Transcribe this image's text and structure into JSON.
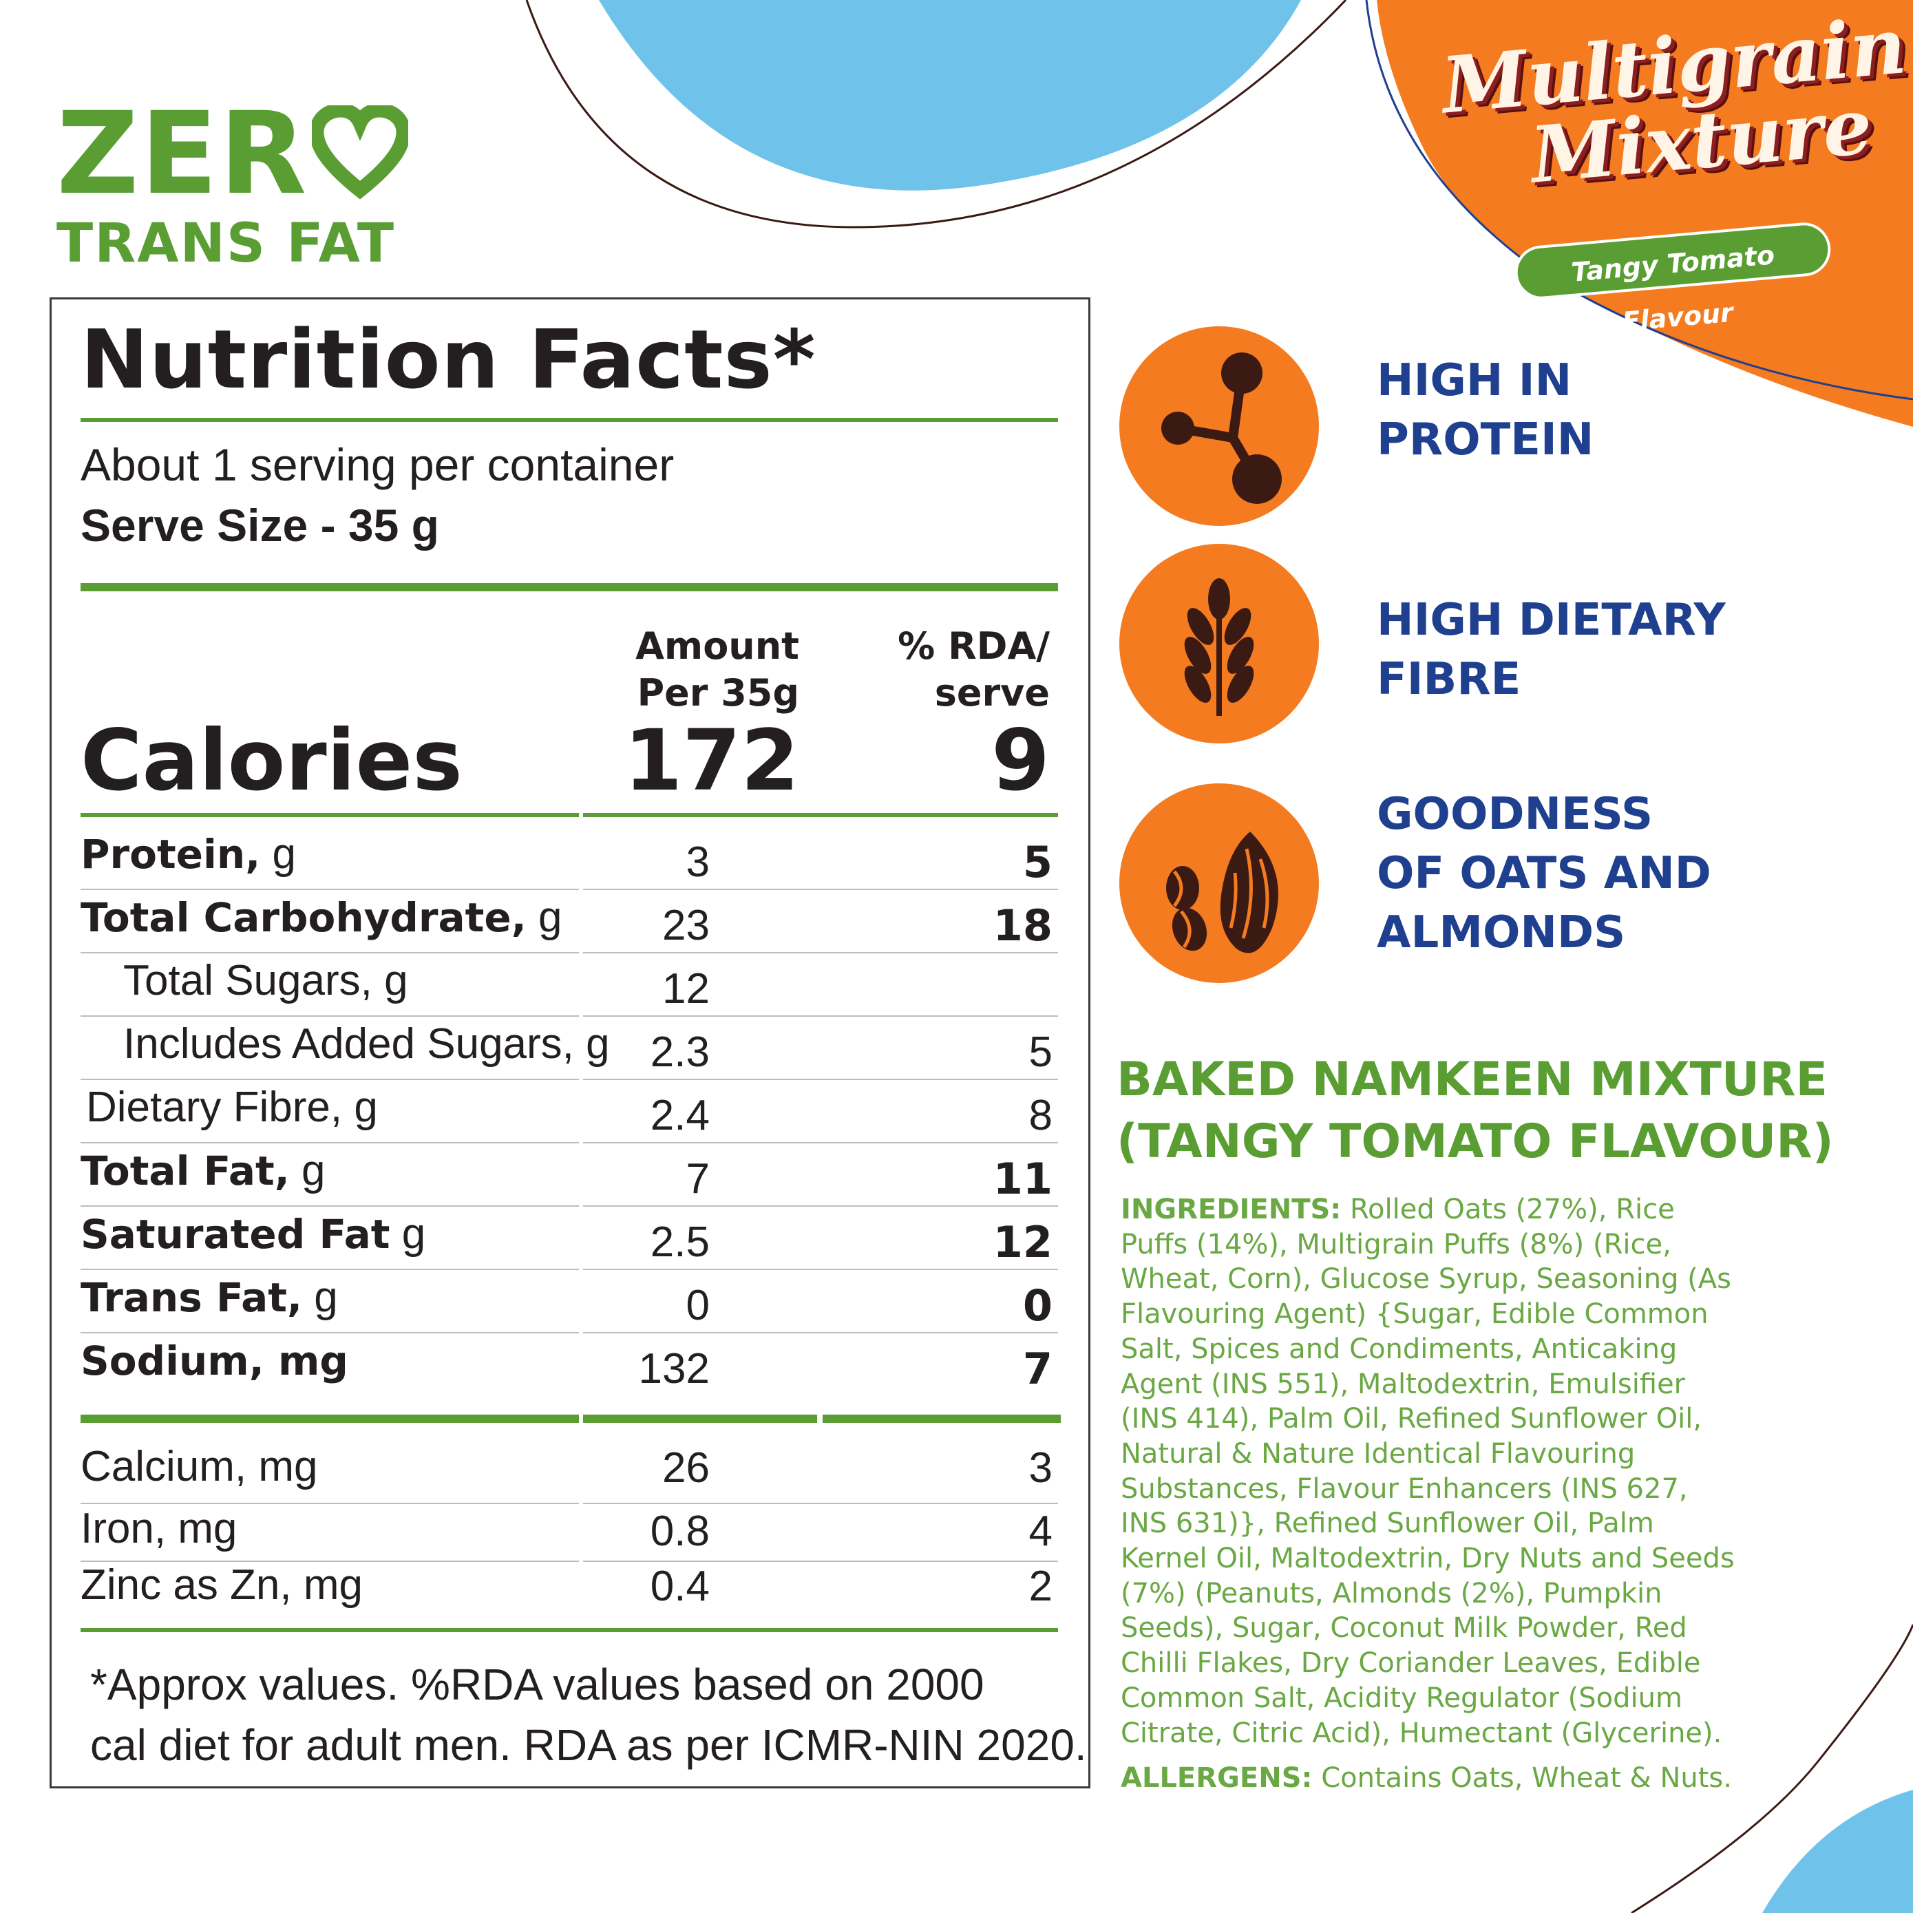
{
  "colors": {
    "green": "#5a9e33",
    "orange": "#f47b20",
    "navy": "#1f3f8f",
    "sky": "#6fc3ea",
    "brown": "#3b1a14"
  },
  "badge": {
    "line1": "ZER",
    "line2": "TRANS FAT",
    "heart_icon": "heart-icon"
  },
  "brand": {
    "line1": "Multigrain",
    "line2": "Mixture",
    "flavour": "Tangy Tomato Flavour"
  },
  "nutrition": {
    "title": "Nutrition Facts*",
    "servings": "About 1 serving per container",
    "serve_size": "Serve Size - 35 g",
    "col_amount_1": "Amount",
    "col_amount_2": "Per 35g",
    "col_rda_1": "% RDA/",
    "col_rda_2": "serve",
    "calories_label": "Calories",
    "calories_amount": "172",
    "calories_rda": "9",
    "rows": [
      {
        "bold": "Protein,",
        "unit": " g",
        "amount": "3",
        "rda": "5"
      },
      {
        "bold": "Total Carbohydrate,",
        "unit": " g",
        "amount": "23",
        "rda": "18"
      },
      {
        "label": "Total Sugars, g",
        "amount": "12",
        "rda": ""
      },
      {
        "label": "Includes Added Sugars, g",
        "amount": "2.3",
        "rda": "5"
      },
      {
        "label": "Dietary Fibre, g",
        "amount": "2.4",
        "rda": "8"
      },
      {
        "bold": "Total Fat,",
        "unit": " g",
        "amount": "7",
        "rda": "11"
      },
      {
        "bold": "Saturated Fat",
        "unit": " g",
        "amount": "2.5",
        "rda": "12"
      },
      {
        "bold": "Trans Fat,",
        "unit": " g",
        "amount": "0",
        "rda": "0"
      },
      {
        "bold": "Sodium, mg",
        "unit": "",
        "amount": "132",
        "rda": "7"
      }
    ],
    "minerals": [
      {
        "label": "Calcium, mg",
        "amount": "26",
        "rda": "3"
      },
      {
        "label": "Iron, mg",
        "amount": "0.8",
        "rda": "4"
      },
      {
        "label": "Zinc as Zn, mg",
        "amount": "0.4",
        "rda": "2"
      }
    ],
    "footnote_1": "*Approx values. %RDA values based on 2000",
    "footnote_2": "cal diet for adult men. RDA as per ICMR-NIN 2020."
  },
  "claims": [
    {
      "icon": "molecule-icon",
      "line1": "HIGH IN",
      "line2": "PROTEIN",
      "line3": ""
    },
    {
      "icon": "wheat-icon",
      "line1": "HIGH DIETARY",
      "line2": "FIBRE",
      "line3": ""
    },
    {
      "icon": "almond-coffee-bean-icon",
      "line1": "GOODNESS",
      "line2": "OF OATS AND",
      "line3": "ALMONDS"
    }
  ],
  "product": {
    "name_1": "BAKED NAMKEEN MIXTURE",
    "name_2": "(TANGY TOMATO FLAVOUR)",
    "ingredients_label": "INGREDIENTS:",
    "ingredients_text": " Rolled Oats (27%), Rice Puffs (14%), Multigrain Puffs (8%) (Rice, Wheat, Corn), Glucose Syrup, Seasoning (As Flavouring Agent) {Sugar, Edible Common Salt, Spices and Condiments, Anticaking Agent (INS 551), Maltodextrin, Emulsifier (INS 414), Palm Oil, Refined Sunflower Oil, Natural & Nature Identical Flavouring Substances, Flavour Enhancers (INS 627, INS 631)}, Refined Sunflower Oil, Palm Kernel Oil, Maltodextrin, Dry Nuts and Seeds (7%) (Peanuts, Almonds (2%), Pumpkin Seeds), Sugar, Coconut Milk Powder, Red Chilli Flakes, Dry Coriander Leaves, Edible Common Salt, Acidity Regulator (Sodium Citrate, Citric Acid), Humectant (Glycerine).",
    "allergens_label": "ALLERGENS:",
    "allergens_text": " Contains Oats, Wheat & Nuts."
  }
}
